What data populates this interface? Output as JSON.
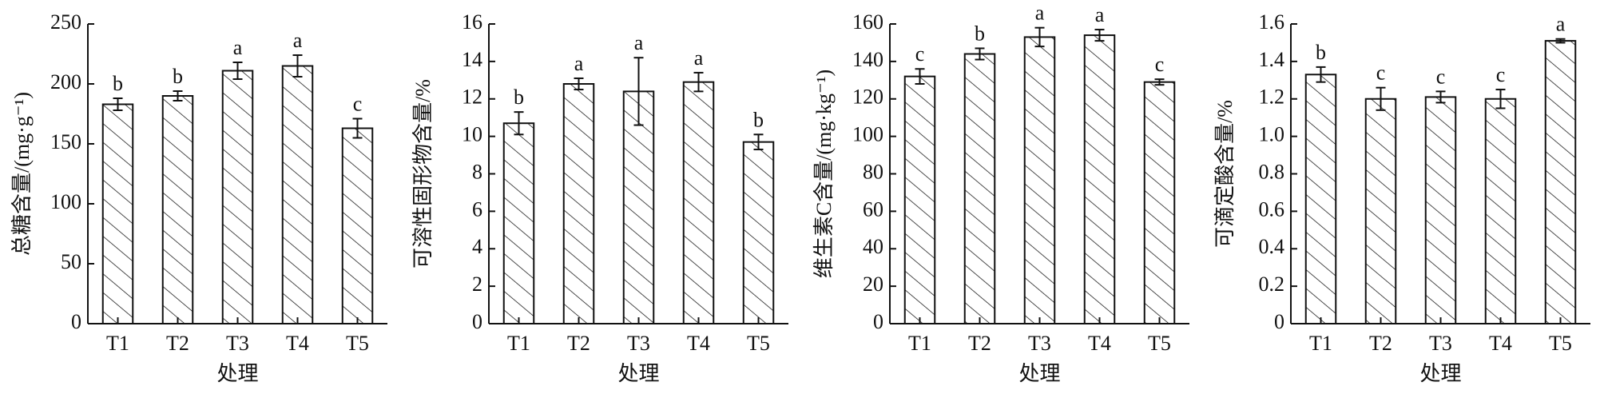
{
  "chart_data": [
    {
      "type": "bar",
      "ylabel": "总糖含量/(mg·g⁻¹)",
      "xlabel": "处理",
      "categories": [
        "T1",
        "T2",
        "T3",
        "T4",
        "T5"
      ],
      "values": [
        183,
        190,
        211,
        215,
        163
      ],
      "errors": [
        5,
        4,
        7,
        9,
        8
      ],
      "letters": [
        "b",
        "b",
        "a",
        "a",
        "c"
      ],
      "ylim": [
        0,
        250
      ],
      "yticks": [
        0,
        50,
        100,
        150,
        200,
        250
      ]
    },
    {
      "type": "bar",
      "ylabel": "可溶性固形物含量/%",
      "xlabel": "处理",
      "categories": [
        "T1",
        "T2",
        "T3",
        "T4",
        "T5"
      ],
      "values": [
        10.7,
        12.8,
        12.4,
        12.9,
        9.7
      ],
      "errors": [
        0.6,
        0.3,
        1.8,
        0.5,
        0.4
      ],
      "letters": [
        "b",
        "a",
        "a",
        "a",
        "b"
      ],
      "ylim": [
        0,
        16
      ],
      "yticks": [
        0,
        2,
        4,
        6,
        8,
        10,
        12,
        14,
        16
      ]
    },
    {
      "type": "bar",
      "ylabel": "维生素C含量/(mg·kg⁻¹)",
      "xlabel": "处理",
      "categories": [
        "T1",
        "T2",
        "T3",
        "T4",
        "T5"
      ],
      "values": [
        132,
        144,
        153,
        154,
        129
      ],
      "errors": [
        4,
        3,
        5,
        3,
        1.5
      ],
      "letters": [
        "c",
        "b",
        "a",
        "a",
        "c"
      ],
      "ylim": [
        0,
        160
      ],
      "yticks": [
        0,
        20,
        40,
        60,
        80,
        100,
        120,
        140,
        160
      ]
    },
    {
      "type": "bar",
      "ylabel": "可滴定酸含量/%",
      "xlabel": "处理",
      "categories": [
        "T1",
        "T2",
        "T3",
        "T4",
        "T5"
      ],
      "values": [
        1.33,
        1.2,
        1.21,
        1.2,
        1.51
      ],
      "errors": [
        0.04,
        0.06,
        0.03,
        0.05,
        0.01
      ],
      "letters": [
        "b",
        "c",
        "c",
        "c",
        "a"
      ],
      "ylim": [
        0,
        1.6
      ],
      "yticks": [
        0,
        0.2,
        0.4,
        0.6,
        0.8,
        {
          "value": 1,
          "label": "1.0"
        },
        1.2,
        1.4,
        1.6
      ]
    }
  ]
}
